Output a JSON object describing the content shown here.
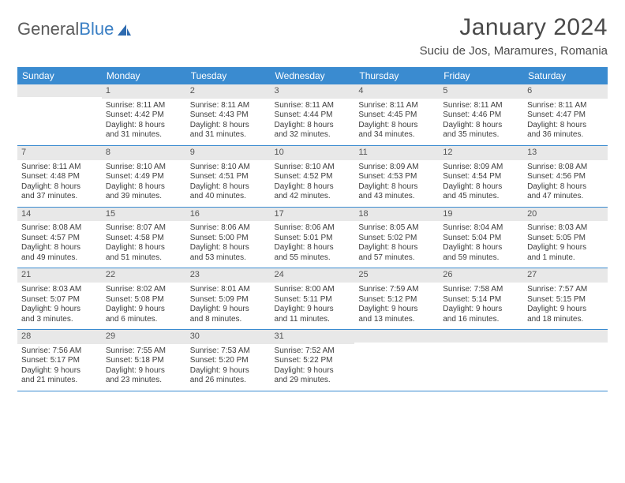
{
  "logo": {
    "word1": "General",
    "word2": "Blue"
  },
  "title": "January 2024",
  "location": "Suciu de Jos, Maramures, Romania",
  "dayHeaders": [
    "Sunday",
    "Monday",
    "Tuesday",
    "Wednesday",
    "Thursday",
    "Friday",
    "Saturday"
  ],
  "colors": {
    "header_bg": "#3a8bd0",
    "header_text": "#ffffff",
    "row_divider": "#3a8bd0",
    "daynum_bg": "#e8e8e8",
    "body_text": "#3d3d3d",
    "title_text": "#4a4a4a",
    "logo_gray": "#5a5a5a",
    "logo_blue": "#3a7fc4"
  },
  "typography": {
    "title_fontsize": 30,
    "location_fontsize": 15,
    "header_fontsize": 12,
    "daynum_fontsize": 11,
    "body_fontsize": 10
  },
  "weeks": [
    [
      {
        "num": "",
        "lines": [
          "",
          "",
          "",
          ""
        ]
      },
      {
        "num": "1",
        "lines": [
          "Sunrise: 8:11 AM",
          "Sunset: 4:42 PM",
          "Daylight: 8 hours",
          "and 31 minutes."
        ]
      },
      {
        "num": "2",
        "lines": [
          "Sunrise: 8:11 AM",
          "Sunset: 4:43 PM",
          "Daylight: 8 hours",
          "and 31 minutes."
        ]
      },
      {
        "num": "3",
        "lines": [
          "Sunrise: 8:11 AM",
          "Sunset: 4:44 PM",
          "Daylight: 8 hours",
          "and 32 minutes."
        ]
      },
      {
        "num": "4",
        "lines": [
          "Sunrise: 8:11 AM",
          "Sunset: 4:45 PM",
          "Daylight: 8 hours",
          "and 34 minutes."
        ]
      },
      {
        "num": "5",
        "lines": [
          "Sunrise: 8:11 AM",
          "Sunset: 4:46 PM",
          "Daylight: 8 hours",
          "and 35 minutes."
        ]
      },
      {
        "num": "6",
        "lines": [
          "Sunrise: 8:11 AM",
          "Sunset: 4:47 PM",
          "Daylight: 8 hours",
          "and 36 minutes."
        ]
      }
    ],
    [
      {
        "num": "7",
        "lines": [
          "Sunrise: 8:11 AM",
          "Sunset: 4:48 PM",
          "Daylight: 8 hours",
          "and 37 minutes."
        ]
      },
      {
        "num": "8",
        "lines": [
          "Sunrise: 8:10 AM",
          "Sunset: 4:49 PM",
          "Daylight: 8 hours",
          "and 39 minutes."
        ]
      },
      {
        "num": "9",
        "lines": [
          "Sunrise: 8:10 AM",
          "Sunset: 4:51 PM",
          "Daylight: 8 hours",
          "and 40 minutes."
        ]
      },
      {
        "num": "10",
        "lines": [
          "Sunrise: 8:10 AM",
          "Sunset: 4:52 PM",
          "Daylight: 8 hours",
          "and 42 minutes."
        ]
      },
      {
        "num": "11",
        "lines": [
          "Sunrise: 8:09 AM",
          "Sunset: 4:53 PM",
          "Daylight: 8 hours",
          "and 43 minutes."
        ]
      },
      {
        "num": "12",
        "lines": [
          "Sunrise: 8:09 AM",
          "Sunset: 4:54 PM",
          "Daylight: 8 hours",
          "and 45 minutes."
        ]
      },
      {
        "num": "13",
        "lines": [
          "Sunrise: 8:08 AM",
          "Sunset: 4:56 PM",
          "Daylight: 8 hours",
          "and 47 minutes."
        ]
      }
    ],
    [
      {
        "num": "14",
        "lines": [
          "Sunrise: 8:08 AM",
          "Sunset: 4:57 PM",
          "Daylight: 8 hours",
          "and 49 minutes."
        ]
      },
      {
        "num": "15",
        "lines": [
          "Sunrise: 8:07 AM",
          "Sunset: 4:58 PM",
          "Daylight: 8 hours",
          "and 51 minutes."
        ]
      },
      {
        "num": "16",
        "lines": [
          "Sunrise: 8:06 AM",
          "Sunset: 5:00 PM",
          "Daylight: 8 hours",
          "and 53 minutes."
        ]
      },
      {
        "num": "17",
        "lines": [
          "Sunrise: 8:06 AM",
          "Sunset: 5:01 PM",
          "Daylight: 8 hours",
          "and 55 minutes."
        ]
      },
      {
        "num": "18",
        "lines": [
          "Sunrise: 8:05 AM",
          "Sunset: 5:02 PM",
          "Daylight: 8 hours",
          "and 57 minutes."
        ]
      },
      {
        "num": "19",
        "lines": [
          "Sunrise: 8:04 AM",
          "Sunset: 5:04 PM",
          "Daylight: 8 hours",
          "and 59 minutes."
        ]
      },
      {
        "num": "20",
        "lines": [
          "Sunrise: 8:03 AM",
          "Sunset: 5:05 PM",
          "Daylight: 9 hours",
          "and 1 minute."
        ]
      }
    ],
    [
      {
        "num": "21",
        "lines": [
          "Sunrise: 8:03 AM",
          "Sunset: 5:07 PM",
          "Daylight: 9 hours",
          "and 3 minutes."
        ]
      },
      {
        "num": "22",
        "lines": [
          "Sunrise: 8:02 AM",
          "Sunset: 5:08 PM",
          "Daylight: 9 hours",
          "and 6 minutes."
        ]
      },
      {
        "num": "23",
        "lines": [
          "Sunrise: 8:01 AM",
          "Sunset: 5:09 PM",
          "Daylight: 9 hours",
          "and 8 minutes."
        ]
      },
      {
        "num": "24",
        "lines": [
          "Sunrise: 8:00 AM",
          "Sunset: 5:11 PM",
          "Daylight: 9 hours",
          "and 11 minutes."
        ]
      },
      {
        "num": "25",
        "lines": [
          "Sunrise: 7:59 AM",
          "Sunset: 5:12 PM",
          "Daylight: 9 hours",
          "and 13 minutes."
        ]
      },
      {
        "num": "26",
        "lines": [
          "Sunrise: 7:58 AM",
          "Sunset: 5:14 PM",
          "Daylight: 9 hours",
          "and 16 minutes."
        ]
      },
      {
        "num": "27",
        "lines": [
          "Sunrise: 7:57 AM",
          "Sunset: 5:15 PM",
          "Daylight: 9 hours",
          "and 18 minutes."
        ]
      }
    ],
    [
      {
        "num": "28",
        "lines": [
          "Sunrise: 7:56 AM",
          "Sunset: 5:17 PM",
          "Daylight: 9 hours",
          "and 21 minutes."
        ]
      },
      {
        "num": "29",
        "lines": [
          "Sunrise: 7:55 AM",
          "Sunset: 5:18 PM",
          "Daylight: 9 hours",
          "and 23 minutes."
        ]
      },
      {
        "num": "30",
        "lines": [
          "Sunrise: 7:53 AM",
          "Sunset: 5:20 PM",
          "Daylight: 9 hours",
          "and 26 minutes."
        ]
      },
      {
        "num": "31",
        "lines": [
          "Sunrise: 7:52 AM",
          "Sunset: 5:22 PM",
          "Daylight: 9 hours",
          "and 29 minutes."
        ]
      },
      {
        "num": "",
        "lines": [
          "",
          "",
          "",
          ""
        ]
      },
      {
        "num": "",
        "lines": [
          "",
          "",
          "",
          ""
        ]
      },
      {
        "num": "",
        "lines": [
          "",
          "",
          "",
          ""
        ]
      }
    ]
  ]
}
